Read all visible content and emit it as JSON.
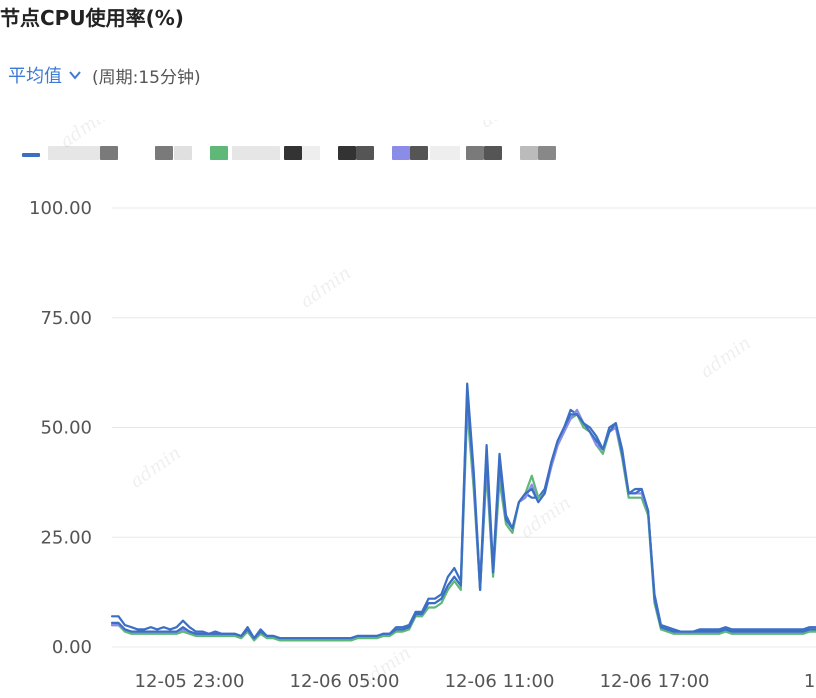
{
  "page": {
    "title": "节点CPU使用率(%)",
    "aggregation": {
      "selected": "平均值",
      "icon": "chevron-down-icon"
    },
    "period_label": "(周期:15分钟)",
    "watermark": "admin"
  },
  "colors": {
    "accent": "#3d7ad6",
    "series": [
      "#3a6fc4",
      "#5fb878",
      "#8b8be8",
      "#3a6fc4"
    ]
  },
  "chart_data": {
    "type": "line",
    "title": "节点CPU使用率(%)",
    "xlabel": "",
    "ylabel": "",
    "ylim": [
      0,
      100
    ],
    "yticks": [
      "0.00",
      "25.00",
      "50.00",
      "75.00",
      "100.00"
    ],
    "xticks": [
      {
        "i": 12,
        "label": "12-05 23:00"
      },
      {
        "i": 36,
        "label": "12-06 05:00"
      },
      {
        "i": 60,
        "label": "12-06 11:00"
      },
      {
        "i": 84,
        "label": "12-06 17:00"
      },
      {
        "i": 108,
        "label": "1"
      }
    ],
    "grid": true,
    "legend": "top, labels obscured",
    "series": [
      {
        "color": "#3a6fc4",
        "values": [
          7,
          7,
          5,
          4.5,
          4,
          4,
          4.5,
          4,
          4.5,
          4,
          4.5,
          6,
          4.5,
          3.5,
          3.5,
          3,
          3.5,
          3,
          3,
          3,
          2.5,
          4.5,
          2,
          4,
          2.5,
          2.5,
          2,
          2,
          2,
          2,
          2,
          2,
          2,
          2,
          2,
          2,
          2,
          2,
          2.5,
          2.5,
          2.5,
          2.5,
          3,
          3,
          4.5,
          4.5,
          5,
          8,
          8,
          11,
          11,
          12,
          16,
          18,
          15,
          60,
          40,
          14,
          46,
          18,
          44,
          30,
          27,
          33,
          35,
          34,
          34,
          36,
          42,
          47,
          50,
          54,
          53,
          51,
          50,
          48,
          45,
          50,
          51,
          45,
          35,
          36,
          36,
          31,
          12,
          5,
          4.5,
          4,
          3.5,
          3.5,
          3.5,
          4,
          4,
          4,
          4,
          4.5,
          4,
          4,
          4,
          4,
          4,
          4,
          4,
          4,
          4,
          4,
          4,
          4,
          4.5,
          4.5
        ]
      },
      {
        "color": "#5fb878",
        "values": [
          5,
          5,
          3.5,
          3,
          3,
          3,
          3,
          3,
          3,
          3,
          3,
          3.5,
          3,
          2.5,
          2.5,
          2.5,
          2.5,
          2.5,
          2.5,
          2.5,
          2,
          3.5,
          1.5,
          3,
          2,
          2,
          1.5,
          1.5,
          1.5,
          1.5,
          1.5,
          1.5,
          1.5,
          1.5,
          1.5,
          1.5,
          1.5,
          1.5,
          2,
          2,
          2,
          2,
          2.5,
          2.5,
          3.5,
          3.5,
          4,
          7,
          7,
          9,
          9,
          10,
          13,
          15,
          13,
          54,
          36,
          13,
          40,
          16,
          38,
          28,
          26,
          33,
          35,
          39,
          34,
          35,
          41,
          46,
          49,
          52,
          53,
          50,
          49,
          46,
          44,
          49,
          50,
          43,
          34,
          34,
          34,
          30,
          10,
          4,
          3.5,
          3,
          3,
          3,
          3,
          3,
          3,
          3,
          3,
          3.5,
          3,
          3,
          3,
          3,
          3,
          3,
          3,
          3,
          3,
          3,
          3,
          3,
          3.5,
          3.5
        ]
      },
      {
        "color": "#8b8be8",
        "values": [
          5,
          5,
          4,
          3.5,
          3.5,
          3.5,
          3.5,
          3.5,
          3.5,
          3.5,
          3.5,
          4,
          3.5,
          3,
          3,
          3,
          3,
          3,
          3,
          3,
          2.5,
          4,
          2,
          3.5,
          2.5,
          2.5,
          2,
          2,
          2,
          2,
          2,
          2,
          2,
          2,
          2,
          2,
          2,
          2,
          2.5,
          2.5,
          2.5,
          2.5,
          3,
          3,
          4,
          4,
          4.5,
          7.5,
          7.5,
          10,
          10,
          11,
          14,
          16,
          14,
          57,
          38,
          13,
          42,
          17,
          41,
          29,
          27,
          33,
          34,
          37,
          33,
          35,
          41,
          46,
          49,
          52,
          54,
          51,
          49,
          46,
          45,
          49,
          50,
          44,
          35,
          35,
          35,
          31,
          11,
          4.5,
          4,
          3.5,
          3.5,
          3.5,
          3.5,
          3.5,
          3.5,
          3.5,
          3.5,
          4,
          3.5,
          3.5,
          3.5,
          3.5,
          3.5,
          3.5,
          3.5,
          3.5,
          3.5,
          3.5,
          3.5,
          3.5,
          4,
          4
        ]
      },
      {
        "color": "#3a6fc4",
        "values": [
          5.5,
          5.5,
          4,
          3.5,
          3.5,
          3.5,
          3.5,
          3.5,
          3.5,
          3.5,
          3.5,
          4.5,
          3.5,
          3,
          3,
          3,
          3,
          3,
          3,
          3,
          2.5,
          4,
          2,
          3.5,
          2.5,
          2.5,
          2,
          2,
          2,
          2,
          2,
          2,
          2,
          2,
          2,
          2,
          2,
          2,
          2.5,
          2.5,
          2.5,
          2.5,
          3,
          3,
          4,
          4,
          4.5,
          7.5,
          7.5,
          10,
          10,
          11,
          14,
          16,
          14,
          58,
          39,
          13,
          44,
          17,
          42,
          29,
          27,
          33,
          35,
          36,
          33,
          35,
          42,
          47,
          50,
          53,
          53,
          51,
          49,
          47,
          45,
          49,
          51,
          44,
          35,
          35,
          36,
          31,
          11,
          4.5,
          4,
          3.5,
          3.5,
          3.5,
          3.5,
          3.5,
          3.5,
          3.5,
          3.5,
          4,
          3.5,
          3.5,
          3.5,
          3.5,
          3.5,
          3.5,
          3.5,
          3.5,
          3.5,
          3.5,
          3.5,
          3.5,
          4,
          4
        ]
      }
    ]
  }
}
